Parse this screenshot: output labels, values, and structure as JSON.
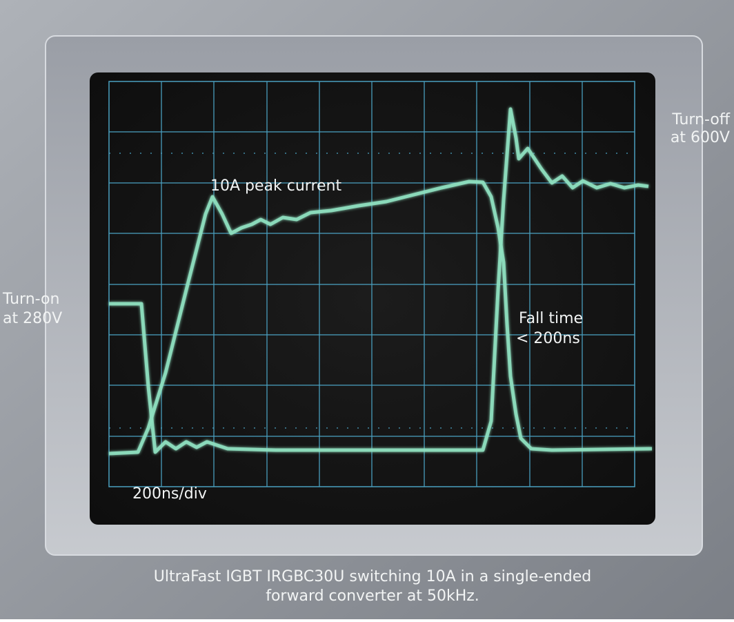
{
  "annotations": {
    "turn_off": [
      "Turn-off",
      "at 600V"
    ],
    "peak_current": "10A peak current",
    "turn_on": [
      "Turn-on",
      "at 280V"
    ],
    "fall_time": [
      "Fall time",
      "< 200ns"
    ],
    "timebase": "200ns/div"
  },
  "caption": [
    "UltraFast IGBT IRGBC30U switching 10A in a single-ended",
    "forward converter at 50kHz."
  ]
}
